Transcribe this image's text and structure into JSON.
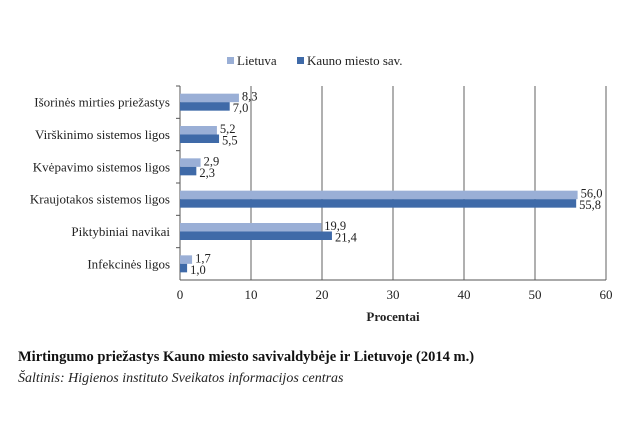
{
  "chart_data": {
    "type": "bar",
    "orientation": "horizontal",
    "categories": [
      "Išorinės mirties priežastys",
      "Virškinimo sistemos ligos",
      "Kvėpavimo sistemos ligos",
      "Kraujotakos sistemos ligos",
      "Piktybiniai navikai",
      "Infekcinės ligos"
    ],
    "series": [
      {
        "name": "Lietuva",
        "color": "#9aafd6",
        "values": [
          8.3,
          5.2,
          2.9,
          56.0,
          19.9,
          1.7
        ],
        "labels": [
          "8,3",
          "5,2",
          "2,9",
          "56,0",
          "19,9",
          "1,7"
        ]
      },
      {
        "name": "Kauno miesto sav.",
        "color": "#3f6aa8",
        "values": [
          7.0,
          5.5,
          2.3,
          55.8,
          21.4,
          1.0
        ],
        "labels": [
          "7,0",
          "5,5",
          "2,3",
          "55,8",
          "21,4",
          "1,0"
        ]
      }
    ],
    "xlabel": "Procentai",
    "xlim": [
      0,
      60
    ],
    "xticks": [
      0,
      10,
      20,
      30,
      40,
      50,
      60
    ],
    "grid": "vertical",
    "legend": "top"
  },
  "caption": {
    "title": "Mirtingumo priežastys Kauno miesto savivaldybėje ir Lietuvoje (2014 m.)",
    "source": "Šaltinis: Higienos instituto Sveikatos informacijos centras"
  }
}
